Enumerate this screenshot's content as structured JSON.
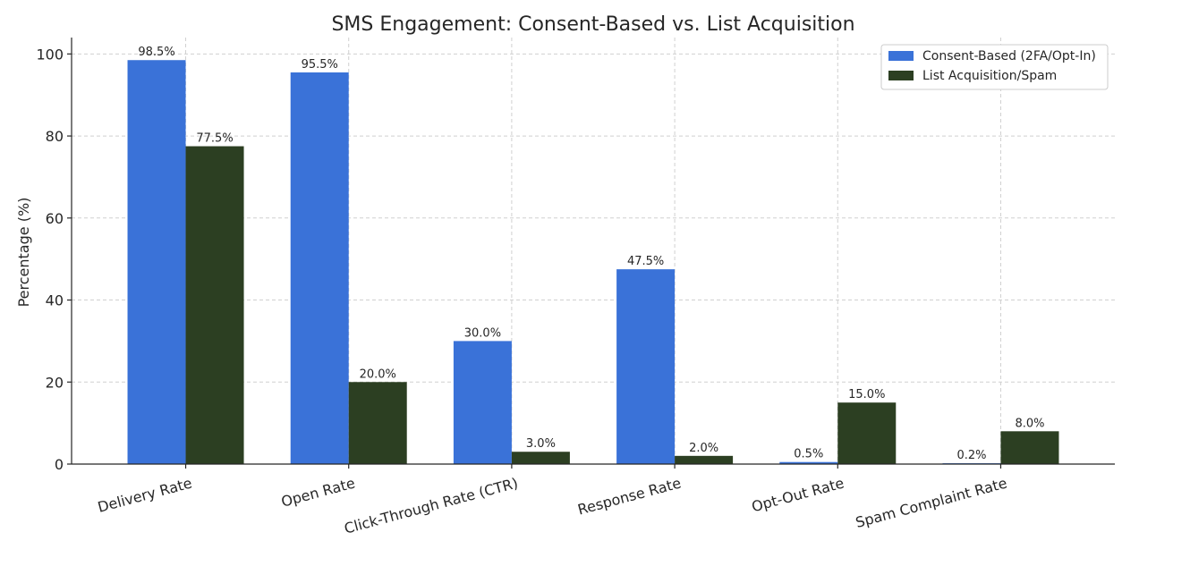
{
  "chart_data": {
    "type": "bar",
    "title": "SMS Engagement: Consent-Based vs. List Acquisition",
    "xlabel": "",
    "ylabel": "Percentage (%)",
    "ylim": [
      0,
      104
    ],
    "yticks": [
      0,
      20,
      40,
      60,
      80,
      100
    ],
    "grid": true,
    "legend_position": "top-right",
    "categories": [
      "Delivery Rate",
      "Open Rate",
      "Click-Through Rate (CTR)",
      "Response Rate",
      "Opt-Out Rate",
      "Spam Complaint Rate"
    ],
    "series": [
      {
        "name": "Consent-Based (2FA/Opt-In)",
        "color": "#3a72d8",
        "values": [
          98.5,
          95.5,
          30.0,
          47.5,
          0.5,
          0.2
        ],
        "labels": [
          "98.5%",
          "95.5%",
          "30.0%",
          "47.5%",
          "0.5%",
          "0.2%"
        ]
      },
      {
        "name": "List Acquisition/Spam",
        "color": "#2c3f22",
        "values": [
          77.5,
          20.0,
          3.0,
          2.0,
          15.0,
          8.0
        ],
        "labels": [
          "77.5%",
          "20.0%",
          "3.0%",
          "2.0%",
          "15.0%",
          "8.0%"
        ]
      }
    ]
  }
}
